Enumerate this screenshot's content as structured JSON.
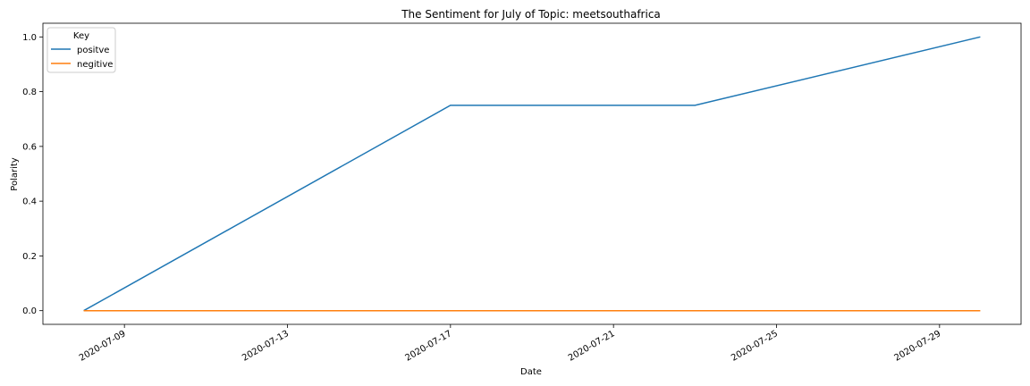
{
  "chart_data": {
    "type": "line",
    "title": "The Sentiment for July of Topic: meetsouthafrica",
    "xlabel": "Date",
    "ylabel": "Polarity",
    "x_range": [
      "2020-07-07",
      "2020-07-31"
    ],
    "ylim": [
      -0.05,
      1.05
    ],
    "x_ticks": [
      "2020-07-09",
      "2020-07-13",
      "2020-07-17",
      "2020-07-21",
      "2020-07-25",
      "2020-07-29"
    ],
    "y_ticks": [
      0.0,
      0.2,
      0.4,
      0.6,
      0.8,
      1.0
    ],
    "y_tick_labels": [
      "0.0",
      "0.2",
      "0.4",
      "0.6",
      "0.8",
      "1.0"
    ],
    "grid": false,
    "legend": {
      "title": "Key",
      "placement": "top-left"
    },
    "series": [
      {
        "name": "positve",
        "color": "#1f77b4",
        "points": [
          {
            "x": "2020-07-08",
            "y": 0.0
          },
          {
            "x": "2020-07-17",
            "y": 0.75
          },
          {
            "x": "2020-07-23",
            "y": 0.75
          },
          {
            "x": "2020-07-30",
            "y": 1.0
          }
        ]
      },
      {
        "name": "negitive",
        "color": "#ff7f0e",
        "points": [
          {
            "x": "2020-07-08",
            "y": 0.0
          },
          {
            "x": "2020-07-17",
            "y": 0.0
          },
          {
            "x": "2020-07-23",
            "y": 0.0
          },
          {
            "x": "2020-07-30",
            "y": 0.0
          }
        ]
      }
    ]
  }
}
